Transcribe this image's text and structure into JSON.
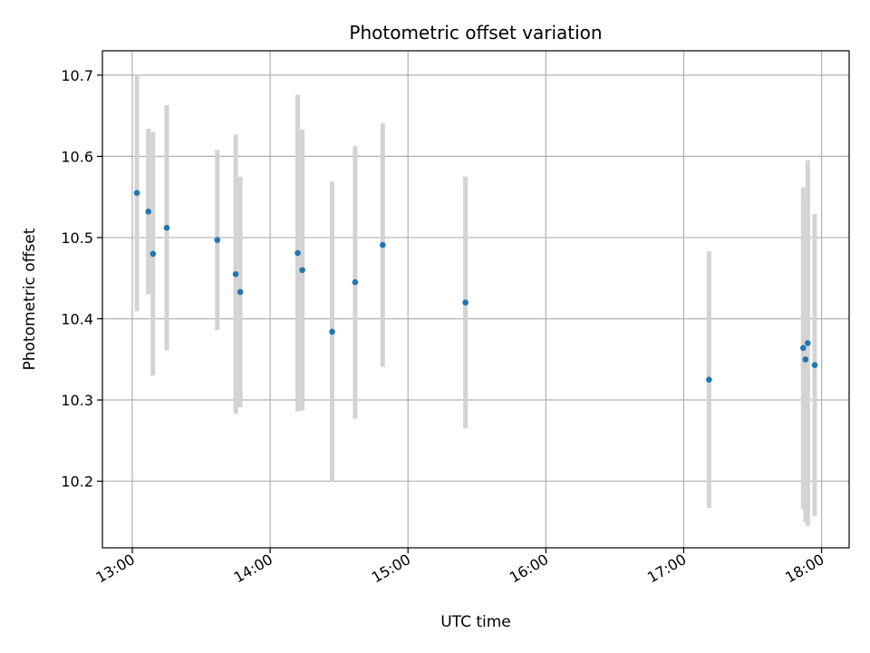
{
  "chart_data": {
    "type": "scatter",
    "title": "Photometric offset variation",
    "xlabel": "UTC time",
    "ylabel": "Photometric offset",
    "x_axis_kind": "time",
    "xlim": [
      "12:47",
      "18:12"
    ],
    "ylim": [
      10.118,
      10.73
    ],
    "grid": true,
    "x_ticks": [
      "13:00",
      "14:00",
      "15:00",
      "16:00",
      "17:00",
      "18:00"
    ],
    "y_ticks": [
      10.2,
      10.3,
      10.4,
      10.5,
      10.6,
      10.7
    ],
    "point_color": "#1f77b4",
    "errorbar_color": "#d3d3d3",
    "points": [
      {
        "x": "13:02",
        "y": 10.555,
        "yerr": 0.146
      },
      {
        "x": "13:07",
        "y": 10.532,
        "yerr": 0.102
      },
      {
        "x": "13:09",
        "y": 10.48,
        "yerr": 0.15
      },
      {
        "x": "13:15",
        "y": 10.512,
        "yerr": 0.151
      },
      {
        "x": "13:37",
        "y": 10.497,
        "yerr": 0.111
      },
      {
        "x": "13:45",
        "y": 10.455,
        "yerr": 0.172
      },
      {
        "x": "13:47",
        "y": 10.433,
        "yerr": 0.142
      },
      {
        "x": "14:12",
        "y": 10.481,
        "yerr": 0.195
      },
      {
        "x": "14:14",
        "y": 10.46,
        "yerr": 0.173
      },
      {
        "x": "14:27",
        "y": 10.384,
        "yerr": 0.185
      },
      {
        "x": "14:37",
        "y": 10.445,
        "yerr": 0.168
      },
      {
        "x": "14:49",
        "y": 10.491,
        "yerr": 0.15
      },
      {
        "x": "15:25",
        "y": 10.42,
        "yerr": 0.155
      },
      {
        "x": "17:11",
        "y": 10.325,
        "yerr": 0.158
      },
      {
        "x": "17:52",
        "y": 10.364,
        "yerr": 0.198
      },
      {
        "x": "17:53",
        "y": 10.35,
        "yerr": 0.2
      },
      {
        "x": "17:54",
        "y": 10.37,
        "yerr": 0.225
      },
      {
        "x": "17:57",
        "y": 10.343,
        "yerr": 0.186
      }
    ]
  }
}
